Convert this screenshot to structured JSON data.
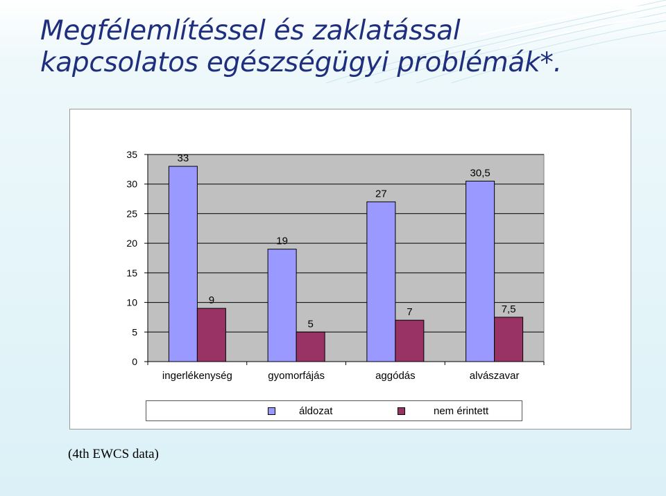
{
  "title": {
    "line1": "Megfélemlítéssel és zaklatással",
    "line2": "kapcsolatos egészségügyi problémák*."
  },
  "chart_data": {
    "type": "bar",
    "categories": [
      "ingerlékenység",
      "gyomorfájás",
      "aggódás",
      "alvászavar"
    ],
    "series": [
      {
        "name": "áldozat",
        "values": [
          33,
          19,
          27,
          30.5
        ],
        "labels": [
          "33",
          "19",
          "27",
          "30,5"
        ],
        "color": "#9999ff"
      },
      {
        "name": "nem érintett",
        "values": [
          9,
          5,
          7,
          7.5
        ],
        "labels": [
          "9",
          "5",
          "7",
          "7,5"
        ],
        "color": "#993366"
      }
    ],
    "ylim": [
      0,
      35
    ],
    "yticks": [
      0,
      5,
      10,
      15,
      20,
      25,
      30,
      35
    ],
    "grid": true,
    "plot_background": "#c0c0c0",
    "legend_position": "bottom"
  },
  "footnote": "(4th EWCS data)"
}
